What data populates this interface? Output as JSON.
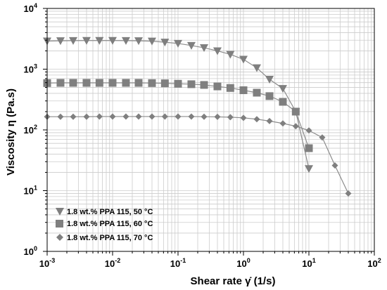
{
  "chart_data": {
    "type": "line",
    "title": "",
    "xlabel": "Shear rate γ̇ (1/s)",
    "ylabel": "Viscosity η (Pa.s)",
    "x_scale": "log",
    "y_scale": "log",
    "xlim": [
      0.001,
      100
    ],
    "ylim": [
      1,
      10000
    ],
    "x_ticks": [
      {
        "base": "10",
        "exp": "-3"
      },
      {
        "base": "10",
        "exp": "-2"
      },
      {
        "base": "10",
        "exp": "-1"
      },
      {
        "base": "10",
        "exp": "0"
      },
      {
        "base": "10",
        "exp": "1"
      },
      {
        "base": "10",
        "exp": "2"
      }
    ],
    "y_ticks": [
      {
        "base": "10",
        "exp": "0"
      },
      {
        "base": "10",
        "exp": "1"
      },
      {
        "base": "10",
        "exp": "2"
      },
      {
        "base": "10",
        "exp": "3"
      },
      {
        "base": "10",
        "exp": "4"
      }
    ],
    "grid": true,
    "minor_grid": true,
    "legend_position": "bottom-left",
    "colors": {
      "series": "#7f7f7f",
      "line": "#8c8c8c",
      "grid": "#cccccc",
      "axis": "#000000"
    },
    "series": [
      {
        "name": "1.8 wt.% PPA 115, 50 °C",
        "marker": "triangle-down",
        "x": [
          0.001,
          0.0016,
          0.0025,
          0.004,
          0.0063,
          0.01,
          0.016,
          0.025,
          0.04,
          0.063,
          0.1,
          0.16,
          0.25,
          0.4,
          0.63,
          1.0,
          1.6,
          2.5,
          4.0,
          6.3,
          10.0
        ],
        "y": [
          2900,
          2930,
          2950,
          2960,
          2960,
          2960,
          2950,
          2930,
          2890,
          2780,
          2650,
          2450,
          2250,
          2000,
          1750,
          1450,
          1050,
          680,
          480,
          200,
          23
        ]
      },
      {
        "name": "1.8 wt.% PPA 115, 60 °C",
        "marker": "square",
        "x": [
          0.001,
          0.0016,
          0.0025,
          0.004,
          0.0063,
          0.01,
          0.016,
          0.025,
          0.04,
          0.063,
          0.1,
          0.16,
          0.25,
          0.4,
          0.63,
          1.0,
          1.6,
          2.5,
          4.0,
          6.3,
          10.0
        ],
        "y": [
          590,
          595,
          595,
          595,
          595,
          595,
          595,
          595,
          590,
          585,
          575,
          565,
          550,
          520,
          490,
          450,
          410,
          360,
          290,
          200,
          50
        ]
      },
      {
        "name": "1.8 wt.% PPA 115, 70 °C",
        "marker": "diamond",
        "x": [
          0.001,
          0.0016,
          0.0025,
          0.004,
          0.0063,
          0.01,
          0.016,
          0.025,
          0.04,
          0.063,
          0.1,
          0.16,
          0.25,
          0.4,
          0.63,
          1.0,
          1.6,
          2.5,
          4.0,
          6.3,
          10.0,
          16.0,
          25.0,
          40.0
        ],
        "y": [
          165,
          165,
          165,
          165,
          166,
          166,
          166,
          166,
          166,
          166,
          166,
          166,
          165,
          164,
          162,
          158,
          150,
          140,
          128,
          115,
          98,
          75,
          26,
          9
        ]
      }
    ]
  }
}
